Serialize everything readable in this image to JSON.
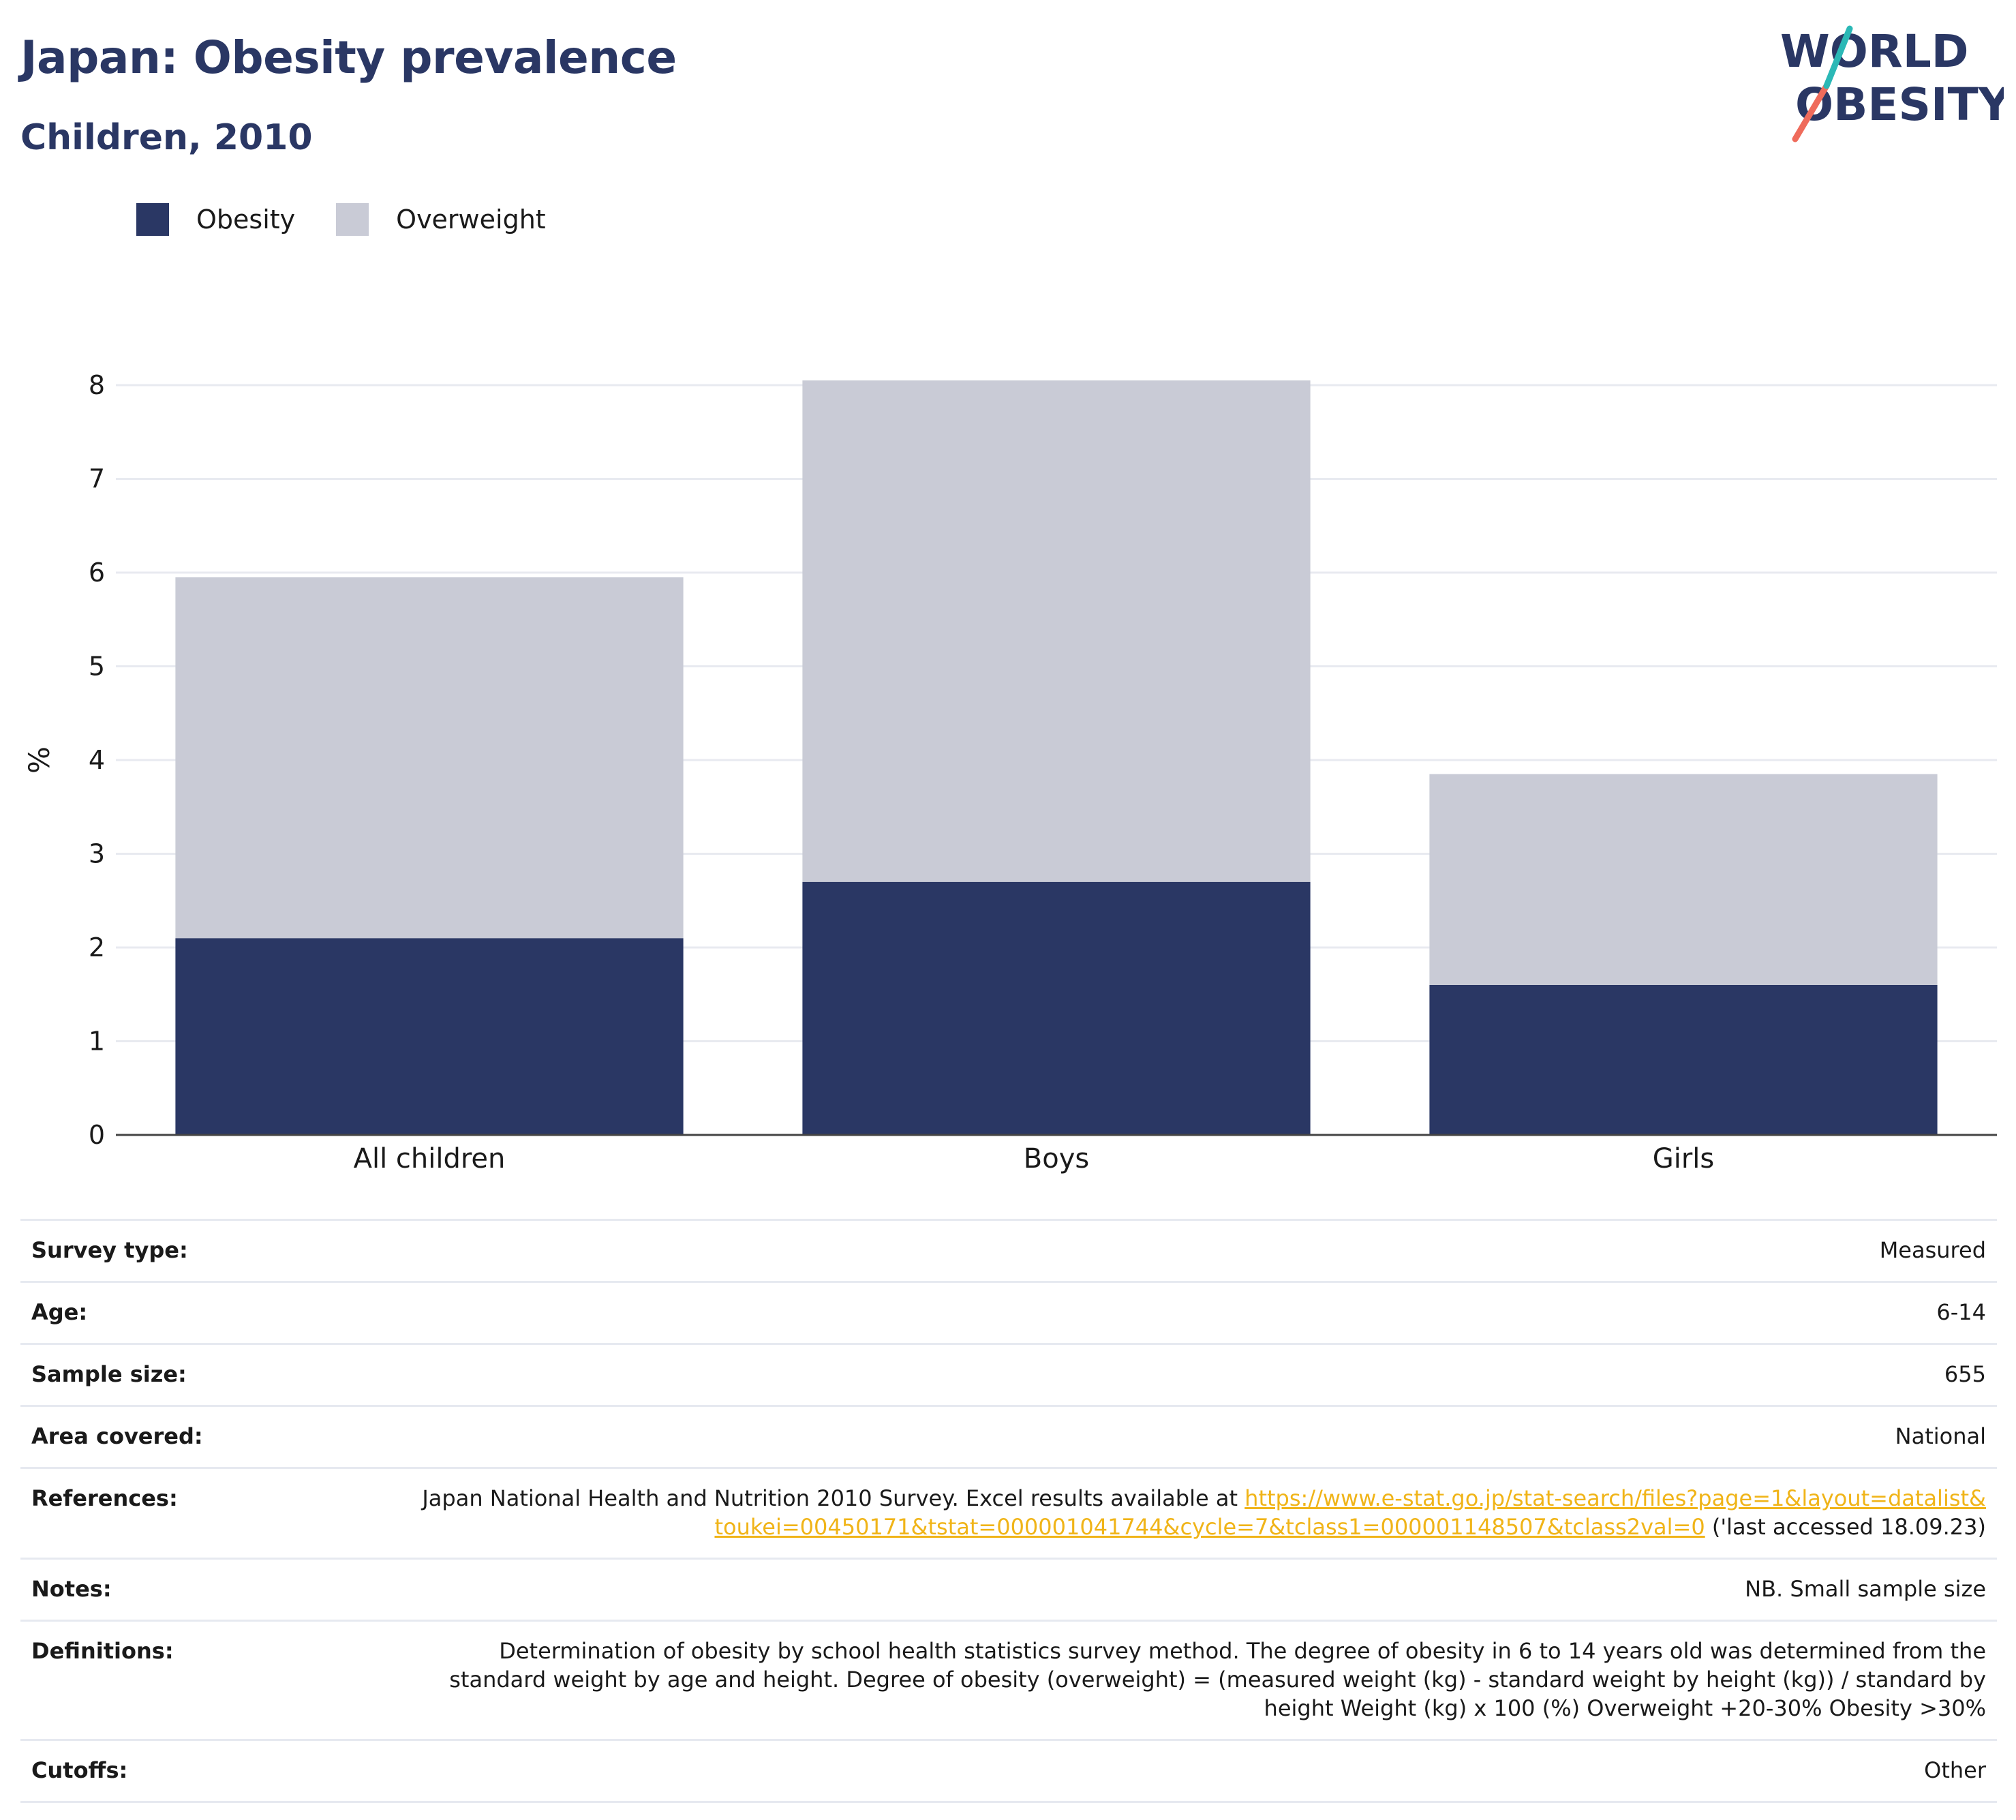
{
  "header": {
    "title": "Japan: Obesity prevalence",
    "subtitle": "Children, 2010"
  },
  "logo": {
    "line1": "WORLD",
    "line2": "OBESITY",
    "colors": {
      "navy": "#2a3764",
      "teal": "#2bb8b6",
      "coral": "#ef6b5b"
    }
  },
  "legend": [
    {
      "label": "Obesity",
      "color": "#2a3764"
    },
    {
      "label": "Overweight",
      "color": "#c9cbd6"
    }
  ],
  "chart_data": {
    "type": "bar",
    "stacked": true,
    "categories": [
      "All children",
      "Boys",
      "Girls"
    ],
    "series": [
      {
        "name": "Obesity",
        "values": [
          2.1,
          2.7,
          1.6
        ],
        "color": "#2a3764"
      },
      {
        "name": "Overweight",
        "values": [
          3.85,
          5.35,
          2.25
        ],
        "color": "#c9cbd6"
      }
    ],
    "ylabel": "%",
    "ylim": [
      0,
      8
    ],
    "yticks": [
      "0",
      "1",
      "2",
      "3",
      "4",
      "5",
      "6",
      "7",
      "8"
    ],
    "grid": true,
    "legend_position": "top-left"
  },
  "details": [
    {
      "label": "Survey type:",
      "value": "Measured"
    },
    {
      "label": "Age:",
      "value": "6-14"
    },
    {
      "label": "Sample size:",
      "value": "655"
    },
    {
      "label": "Area covered:",
      "value": "National"
    },
    {
      "label": "References:",
      "value_prefix": "Japan National Health and Nutrition 2010 Survey. Excel results available at ",
      "link": "https://www.e-stat.go.jp/stat-search/files?page=1&layout=datalist&toukei=00450171&tstat=000001041744&cycle=7&tclass1=000001148507&tclass2val=0",
      "value_suffix": " ('last accessed 18.09.23)"
    },
    {
      "label": "Notes:",
      "value": "NB. Small sample size"
    },
    {
      "label": "Definitions:",
      "value": "Determination of obesity by school health statistics survey method. The degree of obesity in 6 to 14 years old was determined from the standard weight by age and height. Degree of obesity (overweight) = (measured weight (kg) - standard weight by height (kg)) / standard by height Weight (kg) x 100 (%) Overweight +20-30% Obesity >30%"
    },
    {
      "label": "Cutoffs:",
      "value": "Other"
    }
  ]
}
